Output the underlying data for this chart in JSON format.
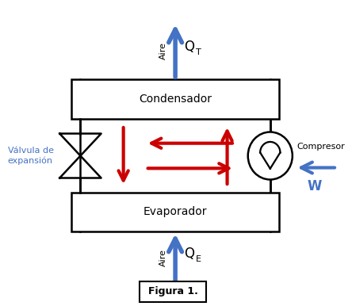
{
  "bg_color": "#ffffff",
  "line_color": "#000000",
  "red_color": "#cc0000",
  "blue_color": "#4472c4",
  "condensador_label": "Condensador",
  "evaporador_label": "Evaporador",
  "valvula_label": "Válvula de\nexpansión",
  "compresor_label": "Compresor",
  "w_label": "W",
  "qt_label": "Q",
  "qt_sub": "T",
  "qe_label": "Q",
  "qe_sub": "E",
  "aire_label": "Aire",
  "figura_label": "Figura 1."
}
